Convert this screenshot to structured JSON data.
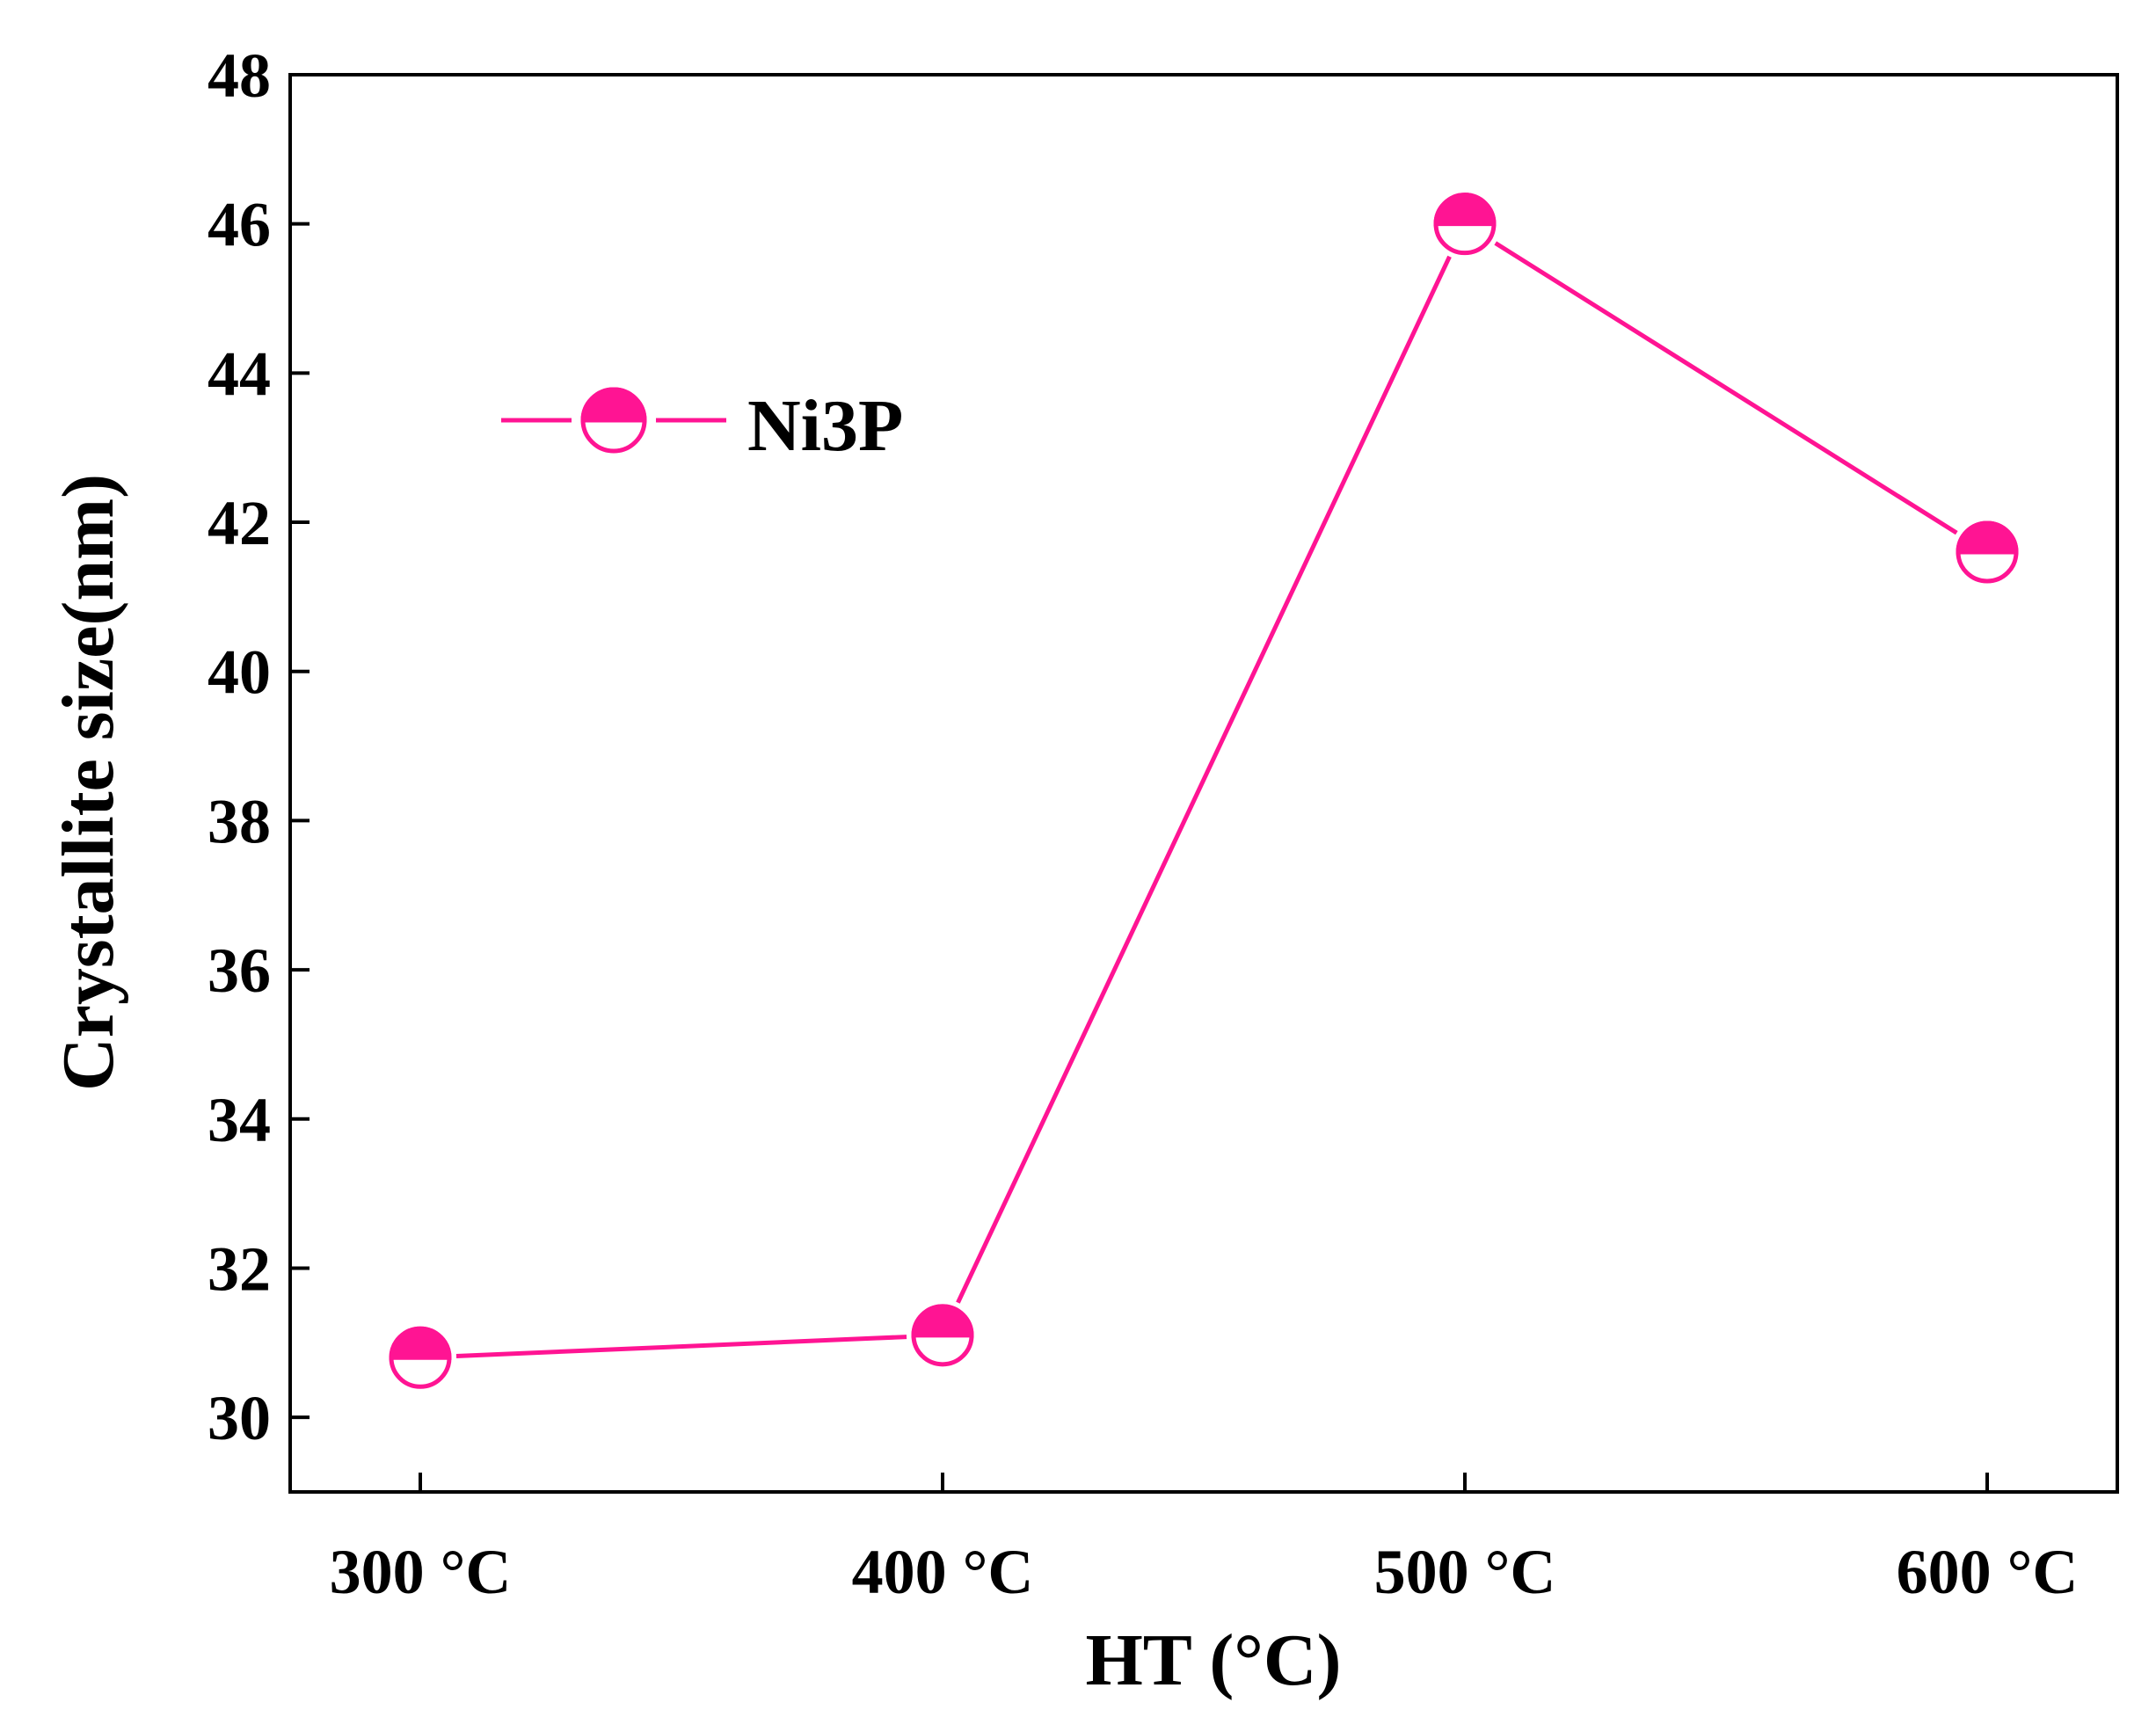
{
  "chart_data": {
    "type": "line",
    "title": "",
    "xlabel": "HT (°C)",
    "ylabel": "Crystallite size(nm)",
    "categories": [
      "300 °C",
      "400 °C",
      "500 °C",
      "600 °C"
    ],
    "series": [
      {
        "name": "Ni3P",
        "values": [
          30.8,
          31.1,
          46.0,
          41.6
        ],
        "color": "#ff1493"
      }
    ],
    "ylim": [
      29,
      48
    ],
    "yticks": [
      "30",
      "32",
      "34",
      "36",
      "38",
      "40",
      "42",
      "44",
      "46",
      "48"
    ],
    "grid": false,
    "legend_position": "top-left",
    "marker": "half-filled-circle"
  }
}
